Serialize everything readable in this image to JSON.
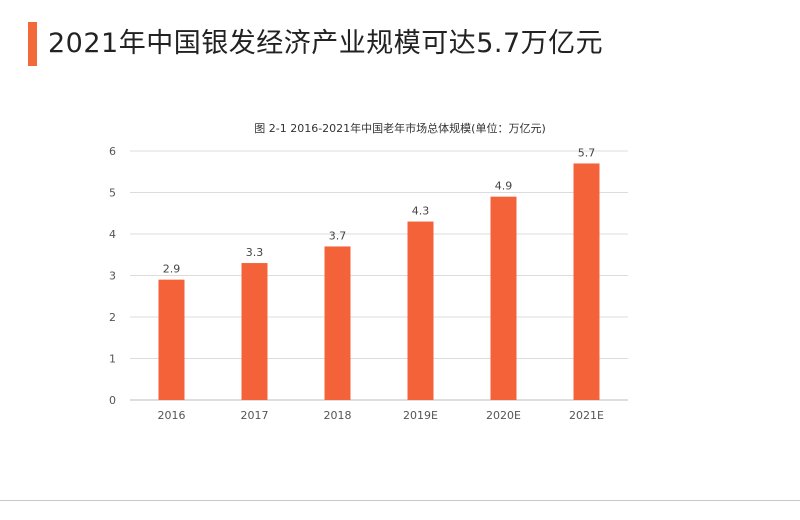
{
  "header": {
    "title": "2021年中国银发经济产业规模可达5.7万亿元",
    "accent_color": "#f26a3a"
  },
  "chart_data": {
    "type": "bar",
    "title": "图 2-1 2016-2021年中国老年市场总体规模(单位：万亿元)",
    "categories": [
      "2016",
      "2017",
      "2018",
      "2019E",
      "2020E",
      "2021E"
    ],
    "values": [
      2.9,
      3.3,
      3.7,
      4.3,
      4.9,
      5.7
    ],
    "value_labels": [
      "2.9",
      "3.3",
      "3.7",
      "4.3",
      "4.9",
      "5.7"
    ],
    "y_ticks": [
      "0",
      "1",
      "2",
      "3",
      "4",
      "5",
      "6"
    ],
    "ylim": [
      0,
      6
    ],
    "grid": true,
    "bar_color": "#f4623a",
    "xlabel": "",
    "ylabel": ""
  }
}
